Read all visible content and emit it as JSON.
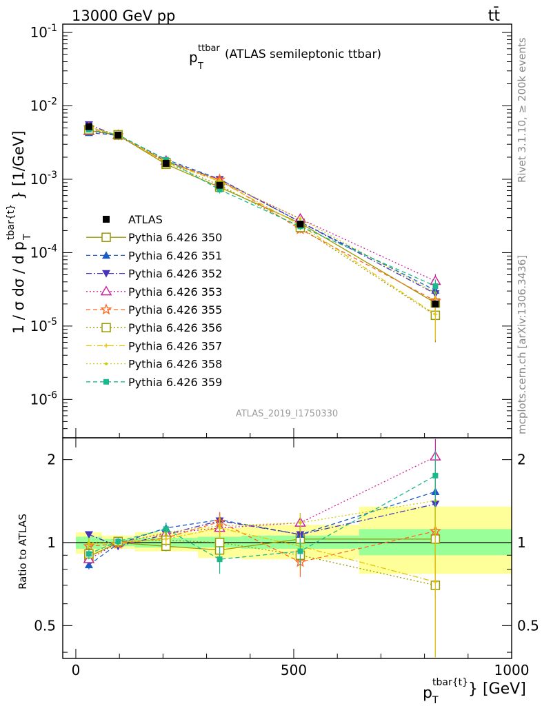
{
  "header": {
    "left_label": "13000 GeV pp",
    "right_label": "tt̄",
    "plot_title_main": "p",
    "plot_title_sub": "T",
    "plot_title_sup": "ttbar",
    "plot_title_rest": "(ATLAS semileptonic ttbar)",
    "analysis_id": "ATLAS_2019_I1750330",
    "side_rivet": "Rivet 3.1.10, ≥ 200k events",
    "side_mcplots": "mcplots.cern.ch [arXiv:1306.3436]"
  },
  "labels": {
    "y_main": "1 / σ dσ / d p",
    "y_main_sub": "T",
    "y_main_sup": "tbar{t}",
    "y_main_unit": "} [1/GeV]",
    "y_ratio": "Ratio to ATLAS",
    "x_main": "p",
    "x_sub": "T",
    "x_sup": "tbar{t}",
    "x_unit": "} [GeV]"
  },
  "colors": {
    "band_inner": "#99ff99",
    "band_outer": "#ffff99"
  },
  "chart_data": {
    "type": "line",
    "title": "pT ttbar (ATLAS semileptonic ttbar)",
    "xlabel": "pT tbar{t} [GeV]",
    "ylabel": "1 / σ dσ / d pT tbar{t} [1/GeV]",
    "xlim": [
      -30,
      1000
    ],
    "ylim_main": [
      3e-07,
      0.13
    ],
    "ylim_ratio": [
      0.38,
      2.4
    ],
    "yscale_main": "log",
    "yscale_ratio": "log",
    "bin_edges": [
      0,
      60,
      135,
      280,
      380,
      650,
      1000
    ],
    "x": [
      30,
      97,
      207,
      330,
      515,
      825
    ],
    "x_ticks": [
      0,
      500,
      1000
    ],
    "x_tick_labels": [
      "0",
      "500",
      "1000"
    ],
    "y_ticks_main": [
      1e-06,
      1e-05,
      0.0001,
      0.001,
      0.01,
      0.1
    ],
    "y_tick_labels_main": [
      "10^-6",
      "10^-5",
      "10^-4",
      "10^-3",
      "10^-2",
      "10^-1"
    ],
    "y_ticks_ratio": [
      0.5,
      1,
      2
    ],
    "y_tick_labels_ratio": [
      "0.5",
      "1",
      "2"
    ],
    "reference": {
      "name": "ATLAS",
      "values": [
        0.0052,
        0.004,
        0.00165,
        0.00083,
        0.000245,
        2e-05
      ],
      "band_inner": [
        [
          0.95,
          1.05
        ],
        [
          0.97,
          1.03
        ],
        [
          0.96,
          1.04
        ],
        [
          0.96,
          1.05
        ],
        [
          0.95,
          1.06
        ],
        [
          0.9,
          1.12
        ]
      ],
      "band_outer": [
        [
          0.91,
          1.09
        ],
        [
          0.95,
          1.06
        ],
        [
          0.93,
          1.09
        ],
        [
          0.88,
          1.13
        ],
        [
          0.87,
          1.16
        ],
        [
          0.77,
          1.35
        ]
      ]
    },
    "series": [
      {
        "name": "Pythia 6.426 350",
        "color": "#999900",
        "marker": "open-square",
        "dash": "solid",
        "ratio": [
          0.89,
          1.0,
          0.97,
          0.94,
          1.03,
          1.03
        ],
        "err": [
          0.05,
          0.04,
          0.04,
          0.1,
          0.1,
          0.4
        ]
      },
      {
        "name": "Pythia 6.426 351",
        "color": "#1a5bc4",
        "marker": "filled-triangle-up",
        "dash": "dash",
        "ratio": [
          0.83,
          0.99,
          1.13,
          1.21,
          1.07,
          1.53
        ],
        "err": [
          0.03,
          0.03,
          0.05,
          0.08,
          0.1,
          0.3
        ]
      },
      {
        "name": "Pythia 6.426 352",
        "color": "#4633b8",
        "marker": "filled-triangle-down",
        "dash": "dashdot",
        "ratio": [
          1.07,
          0.97,
          1.07,
          1.2,
          1.07,
          1.38
        ],
        "err": [
          0.03,
          0.03,
          0.05,
          0.08,
          0.1,
          0.3
        ]
      },
      {
        "name": "Pythia 6.426 353",
        "color": "#cc2299",
        "marker": "open-triangle-up",
        "dash": "dot",
        "ratio": [
          0.87,
          1.0,
          1.08,
          1.13,
          1.18,
          2.05
        ],
        "err": [
          0.03,
          0.03,
          0.05,
          0.08,
          0.1,
          0.5
        ]
      },
      {
        "name": "Pythia 6.426 355",
        "color": "#ff6622",
        "marker": "open-star",
        "dash": "dash",
        "ratio": [
          0.97,
          0.99,
          1.04,
          1.19,
          0.85,
          1.1
        ],
        "err": [
          0.04,
          0.03,
          0.05,
          0.1,
          0.1,
          0.3
        ]
      },
      {
        "name": "Pythia 6.426 356",
        "color": "#999900",
        "marker": "open-square",
        "dash": "dot",
        "ratio": [
          0.91,
          1.01,
          1.02,
          1.0,
          0.9,
          0.7
        ],
        "err": [
          0.04,
          0.03,
          0.05,
          0.1,
          0.1,
          0.4
        ]
      },
      {
        "name": "Pythia 6.426 357",
        "color": "#e6c200",
        "marker": "small-cross",
        "dash": "dashdot",
        "ratio": [
          0.99,
          1.0,
          1.03,
          1.13,
          0.97,
          0.72
        ],
        "err": [
          0.04,
          0.03,
          0.05,
          0.1,
          0.1,
          0.4
        ]
      },
      {
        "name": "Pythia 6.426 358",
        "color": "#cccc00",
        "marker": "small-dot",
        "dash": "dot",
        "ratio": [
          1.0,
          0.99,
          1.09,
          1.15,
          1.18,
          1.42
        ],
        "err": [
          0.04,
          0.03,
          0.05,
          0.1,
          0.1,
          0.4
        ]
      },
      {
        "name": "Pythia 6.426 359",
        "color": "#1ab88a",
        "marker": "filled-square",
        "dash": "dash",
        "ratio": [
          0.91,
          1.01,
          1.12,
          0.87,
          0.93,
          1.75
        ],
        "err": [
          0.04,
          0.03,
          0.05,
          0.1,
          0.1,
          0.4
        ]
      }
    ]
  }
}
